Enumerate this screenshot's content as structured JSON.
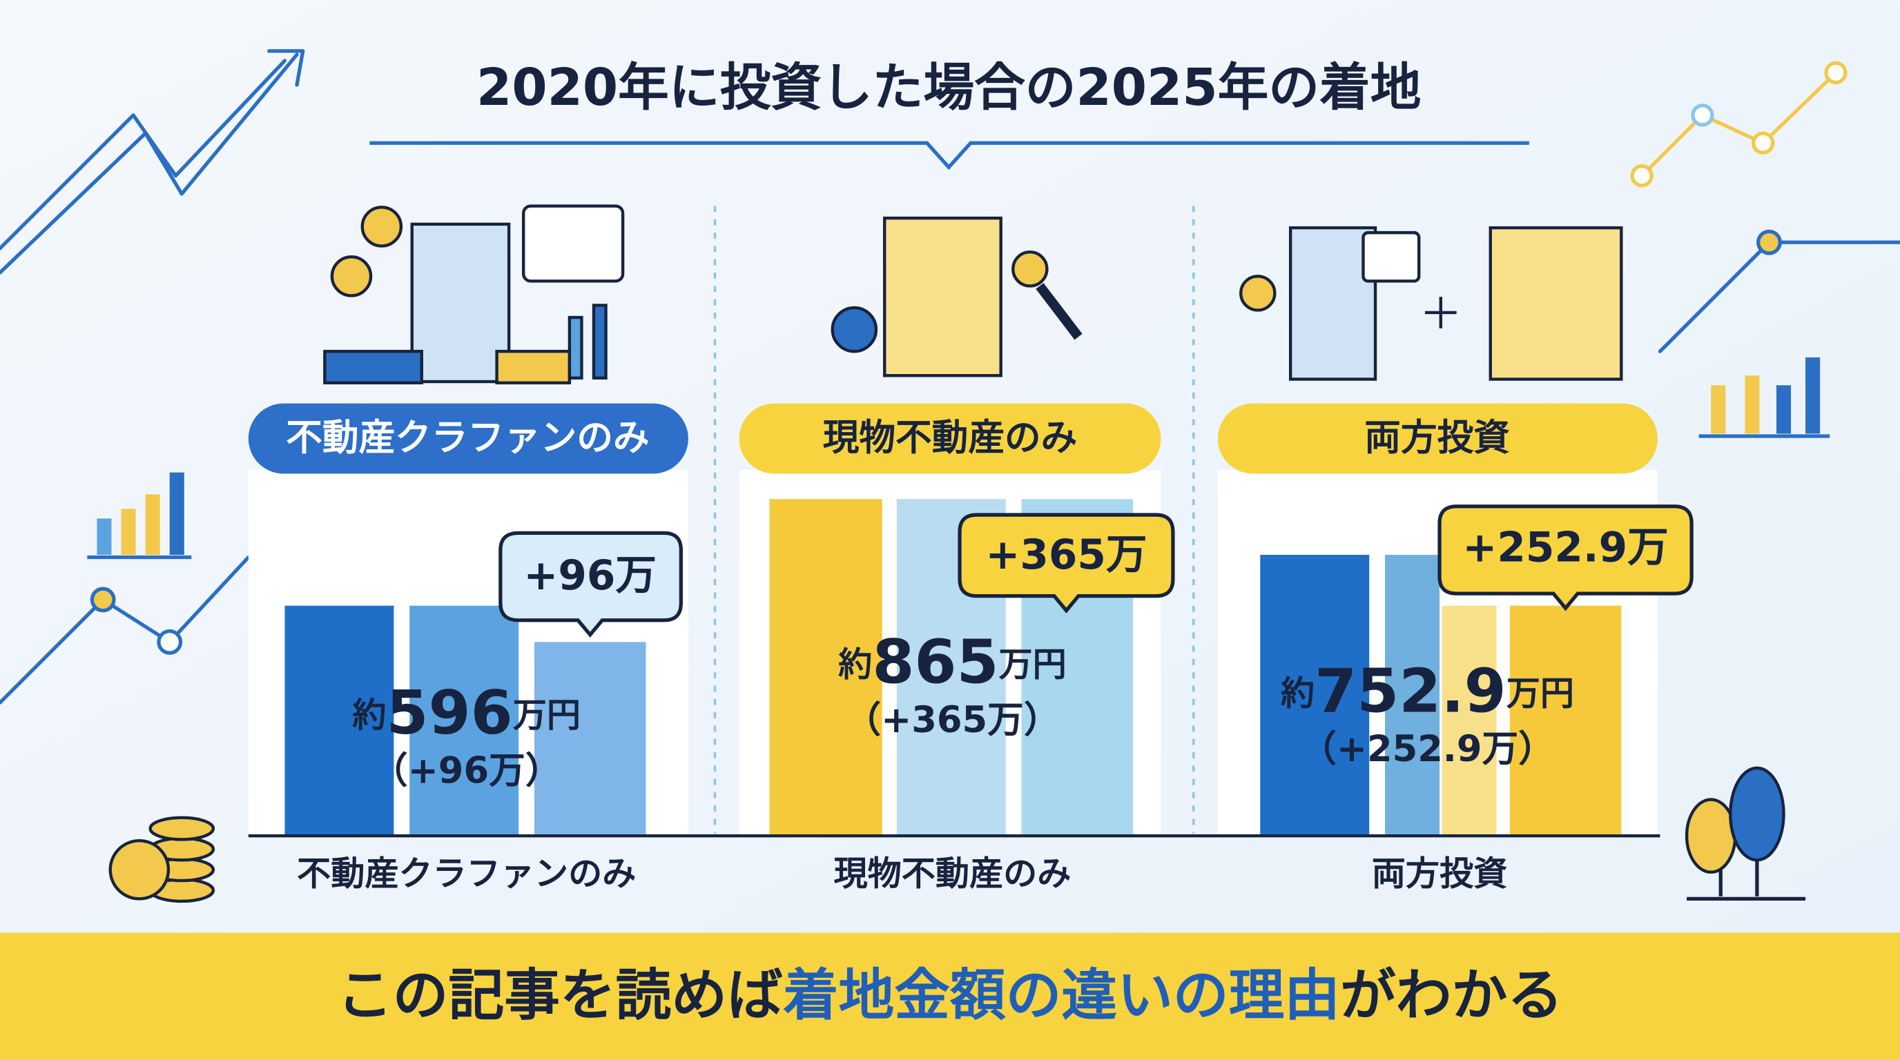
{
  "title": "2020年に投資した場合の2025年の着地",
  "panels": [
    {
      "label": "不動産クラファンのみ",
      "badge": "+96万",
      "prefix": "約",
      "amount": "596",
      "unit": "万円",
      "diff": "（+96万）",
      "axis_label": "不動産クラファンのみ"
    },
    {
      "label": "現物不動産のみ",
      "badge": "+365万",
      "prefix": "約",
      "amount": "865",
      "unit": "万円",
      "diff": "（+365万）",
      "axis_label": "現物不動産のみ"
    },
    {
      "label": "両方投資",
      "badge": "+252.9万",
      "prefix": "約",
      "amount": "752.9",
      "unit": "万円",
      "diff": "（+252.9万）",
      "axis_label": "両方投資"
    }
  ],
  "footer": {
    "before": "この記事を読めば",
    "highlight": "着地金額の違いの理由",
    "after": "がわかる"
  }
}
